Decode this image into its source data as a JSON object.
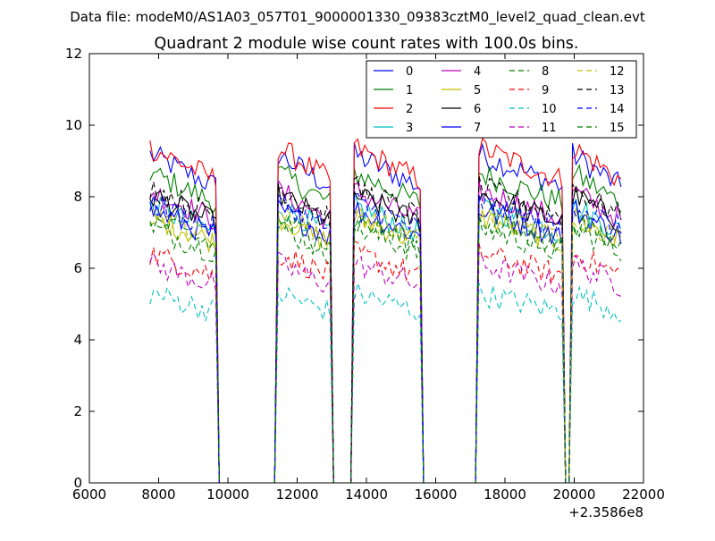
{
  "figure": {
    "suptitle": "Data file: modeM0/AS1A03_057T01_9000001330_09383cztM0_level2_quad_clean.evt"
  },
  "chart_data": {
    "type": "line",
    "title": "Quadrant 2 module wise count rates with 100.0s bins.",
    "xlabel": "",
    "ylabel": "",
    "x_offset_label": "+2.3586e8",
    "xlim": [
      6000,
      22000
    ],
    "ylim": [
      0,
      12
    ],
    "x_ticks": [
      6000,
      8000,
      10000,
      12000,
      14000,
      16000,
      18000,
      20000,
      22000
    ],
    "y_ticks": [
      0,
      2,
      4,
      6,
      8,
      10,
      12
    ],
    "grid": false,
    "legend_position": "top-right",
    "legend_columns": 4,
    "x_start": 7750,
    "x_step": 100,
    "active_windows": [
      [
        7750,
        9650
      ],
      [
        11450,
        12950
      ],
      [
        13650,
        15550
      ],
      [
        17250,
        19650
      ],
      [
        19950,
        21350
      ]
    ],
    "series": [
      {
        "name": "0",
        "color": "#0000ff",
        "dash": "solid",
        "level": 9.0
      },
      {
        "name": "1",
        "color": "#008000",
        "dash": "solid",
        "level": 8.5
      },
      {
        "name": "2",
        "color": "#ff0000",
        "dash": "solid",
        "level": 9.2
      },
      {
        "name": "3",
        "color": "#00bfbf",
        "dash": "solid",
        "level": 7.6
      },
      {
        "name": "4",
        "color": "#bf00bf",
        "dash": "solid",
        "level": 8.0
      },
      {
        "name": "5",
        "color": "#bfbf00",
        "dash": "solid",
        "level": 7.3
      },
      {
        "name": "6",
        "color": "#000000",
        "dash": "solid",
        "level": 7.9
      },
      {
        "name": "7",
        "color": "#0000ff",
        "dash": "solid",
        "level": 7.5
      },
      {
        "name": "8",
        "color": "#008000",
        "dash": "dashed",
        "level": 7.0
      },
      {
        "name": "9",
        "color": "#ff0000",
        "dash": "dashed",
        "level": 6.3
      },
      {
        "name": "10",
        "color": "#00bfbf",
        "dash": "dashed",
        "level": 5.2
      },
      {
        "name": "11",
        "color": "#bf00bf",
        "dash": "dashed",
        "level": 6.0
      },
      {
        "name": "12",
        "color": "#bfbf00",
        "dash": "dashed",
        "level": 7.4
      },
      {
        "name": "13",
        "color": "#000000",
        "dash": "dashed",
        "level": 8.1
      },
      {
        "name": "14",
        "color": "#0000ff",
        "dash": "dashed",
        "level": 7.7
      },
      {
        "name": "15",
        "color": "#008000",
        "dash": "dashed",
        "level": 7.2
      }
    ]
  }
}
